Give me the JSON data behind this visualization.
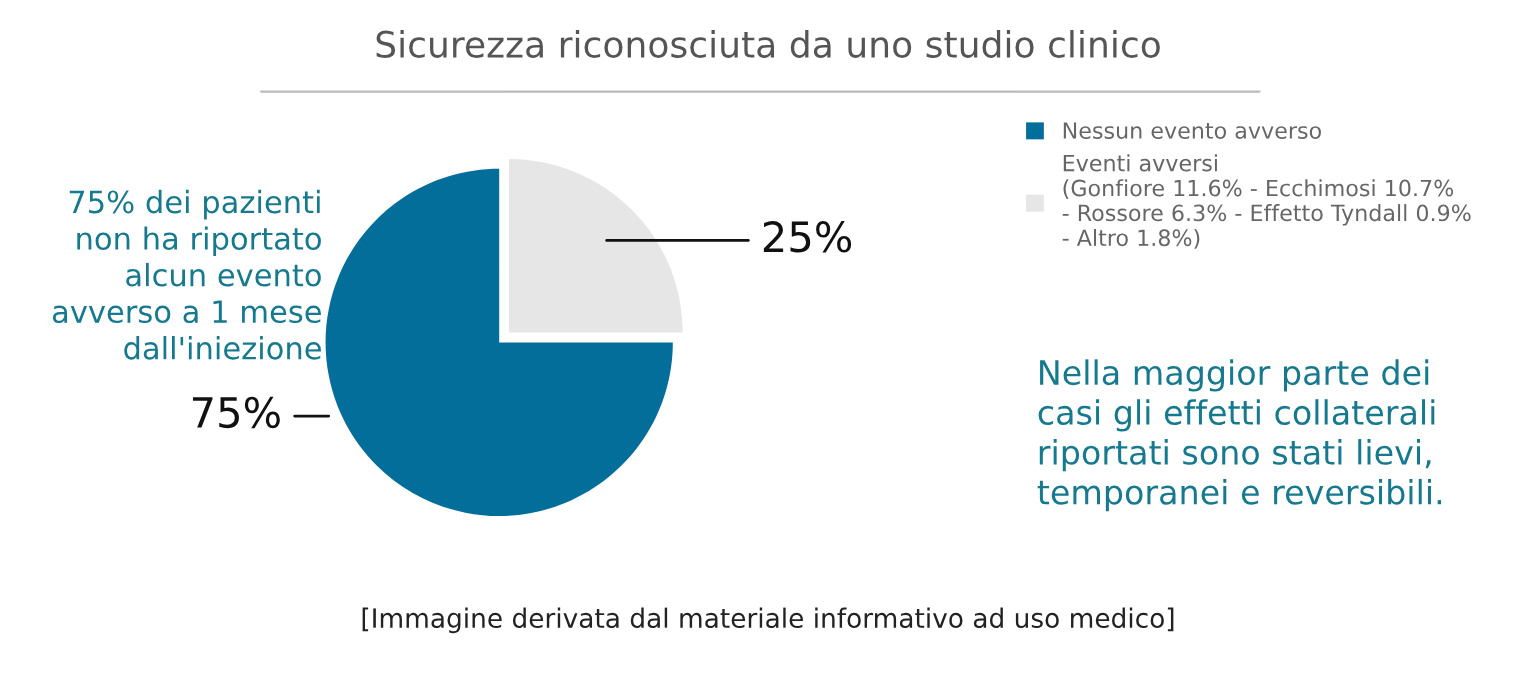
{
  "chart_data": {
    "type": "pie",
    "title": "Sicurezza riconosciuta da uno studio clinico",
    "categories": [
      "Nessun evento avverso",
      "Eventi avversi\n(Gonfiore 11.6% - Ecchimosi 10.7%\n- Rossore 6.3% - Effetto Tyndall 0.9%\n- Altro 1.8%)"
    ],
    "values": [
      75,
      25
    ],
    "colors": [
      "#046e9b",
      "#e6e6e6"
    ],
    "value_labels": [
      "75%",
      "25%"
    ],
    "legend": "right",
    "annotations": [
      "75% dei pazienti\nnon ha riportato\nalcun evento\navverso a 1 mese\ndall'iniezione",
      "Nella maggior parte dei\ncasi gli effetti collaterali\nriportati sono stati lievi,\ntemporanei e reversibili.",
      "[Immagine derivata dal materiale informativo ad uso medico]"
    ]
  }
}
